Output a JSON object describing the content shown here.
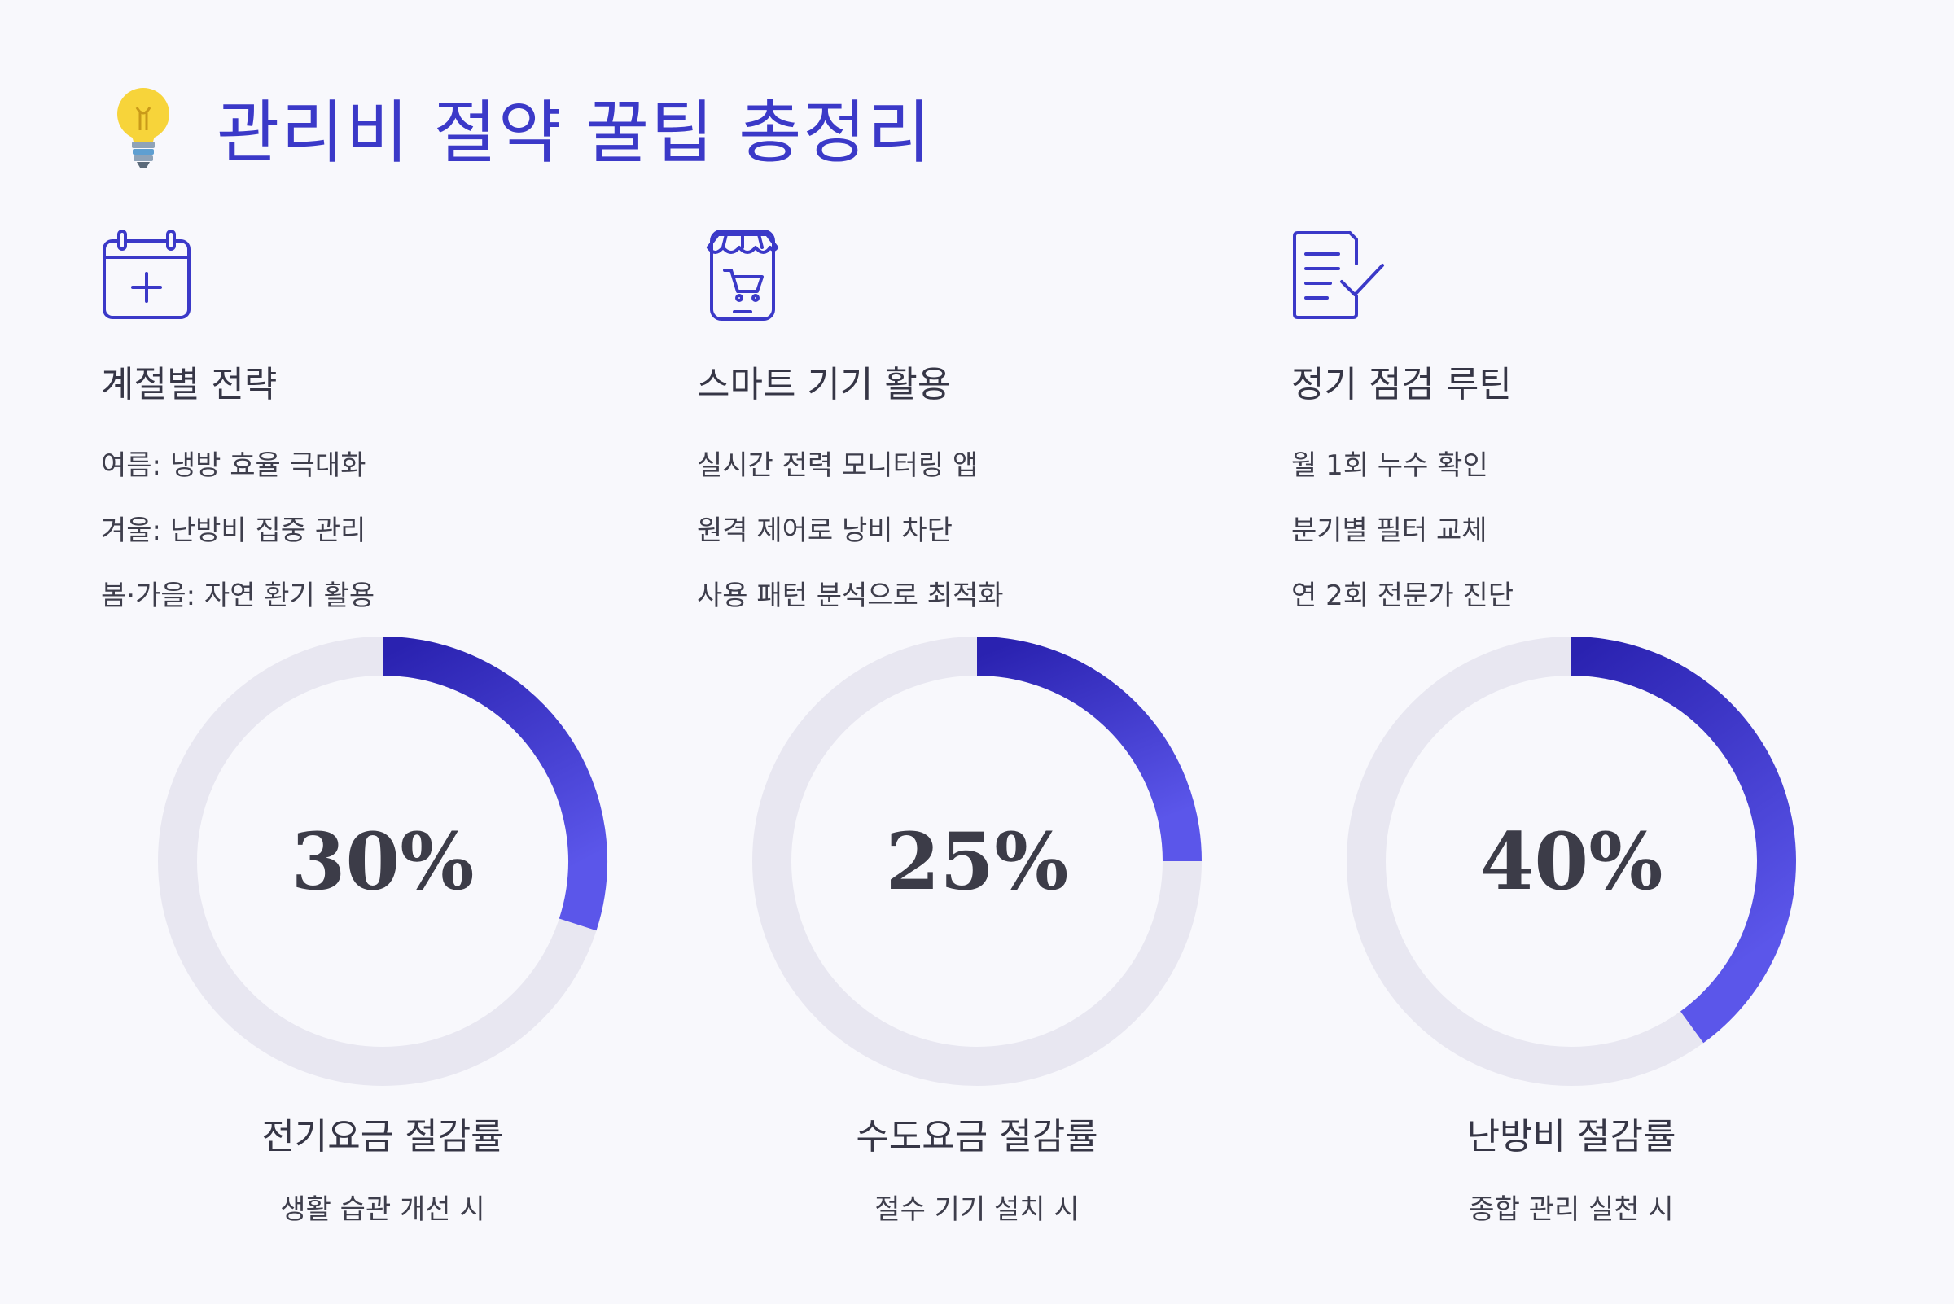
{
  "title": "관리비 절약 꿀팁 총정리",
  "colors": {
    "accent": "#3b39c8",
    "ring_track": "#e8e7f1",
    "ring_start": "#2a22b0",
    "ring_end": "#5b56ea"
  },
  "sections": [
    {
      "icon": "calendar-icon",
      "heading": "계절별 전략",
      "items": [
        "여름: 냉방 효율 극대화",
        "겨울: 난방비 집중 관리",
        "봄·가을: 자연 환기 활용"
      ]
    },
    {
      "icon": "smartphone-shop-icon",
      "heading": "스마트 기기 활용",
      "items": [
        "실시간 전력 모니터링 앱",
        "원격 제어로 낭비 차단",
        "사용 패턴 분석으로 최적화"
      ]
    },
    {
      "icon": "checklist-icon",
      "heading": "정기 점검 루틴",
      "items": [
        "월 1회 누수 확인",
        "분기별 필터 교체",
        "연 2회 전문가 진단"
      ]
    }
  ],
  "stats": [
    {
      "value": 30,
      "display": "30%",
      "label": "전기요금 절감률",
      "sub": "생활 습관 개선 시"
    },
    {
      "value": 25,
      "display": "25%",
      "label": "수도요금 절감률",
      "sub": "절수 기기 설치 시"
    },
    {
      "value": 40,
      "display": "40%",
      "label": "난방비 절감률",
      "sub": "종합 관리 실천 시"
    }
  ]
}
